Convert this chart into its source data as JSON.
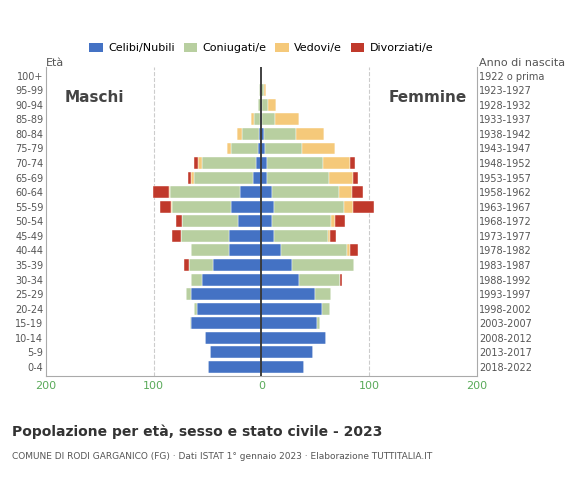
{
  "age_groups": [
    "0-4",
    "5-9",
    "10-14",
    "15-19",
    "20-24",
    "25-29",
    "30-34",
    "35-39",
    "40-44",
    "45-49",
    "50-54",
    "55-59",
    "60-64",
    "65-69",
    "70-74",
    "75-79",
    "80-84",
    "85-89",
    "90-94",
    "95-99",
    "100+"
  ],
  "birth_years": [
    "2018-2022",
    "2013-2017",
    "2008-2012",
    "2003-2007",
    "1998-2002",
    "1993-1997",
    "1988-1992",
    "1983-1987",
    "1978-1982",
    "1973-1977",
    "1968-1972",
    "1963-1967",
    "1958-1962",
    "1953-1957",
    "1948-1952",
    "1943-1947",
    "1938-1942",
    "1933-1937",
    "1928-1932",
    "1923-1927",
    "1922 o prima"
  ],
  "males_celibe": [
    50,
    48,
    52,
    65,
    60,
    65,
    55,
    45,
    30,
    30,
    22,
    28,
    20,
    8,
    5,
    3,
    2,
    1,
    0,
    1,
    0
  ],
  "males_coniugato": [
    0,
    0,
    0,
    1,
    3,
    5,
    10,
    22,
    35,
    45,
    52,
    55,
    65,
    55,
    50,
    25,
    16,
    6,
    3,
    1,
    0
  ],
  "males_vedovo": [
    0,
    0,
    0,
    0,
    0,
    0,
    0,
    0,
    0,
    0,
    0,
    1,
    1,
    2,
    4,
    4,
    5,
    3,
    0,
    0,
    0
  ],
  "males_divorziato": [
    0,
    0,
    0,
    0,
    0,
    0,
    0,
    5,
    0,
    8,
    5,
    10,
    15,
    3,
    4,
    0,
    0,
    0,
    0,
    0,
    0
  ],
  "females_nubile": [
    40,
    48,
    60,
    52,
    56,
    50,
    35,
    28,
    18,
    12,
    10,
    12,
    10,
    5,
    5,
    3,
    2,
    1,
    1,
    0,
    0
  ],
  "females_coniugata": [
    0,
    0,
    0,
    2,
    8,
    15,
    38,
    58,
    62,
    50,
    55,
    65,
    62,
    58,
    52,
    35,
    30,
    12,
    5,
    2,
    0
  ],
  "females_vedova": [
    0,
    0,
    0,
    0,
    0,
    0,
    0,
    0,
    2,
    2,
    3,
    8,
    12,
    22,
    25,
    30,
    26,
    22,
    8,
    2,
    0
  ],
  "females_divorziata": [
    0,
    0,
    0,
    0,
    0,
    0,
    2,
    0,
    8,
    5,
    10,
    20,
    10,
    5,
    5,
    0,
    0,
    0,
    0,
    0,
    0
  ],
  "color_celibe": "#4472c4",
  "color_coniugato": "#b8cfa0",
  "color_vedovo": "#f5c97a",
  "color_divorziato": "#c0392b",
  "legend_labels": [
    "Celibi/Nubili",
    "Coniugati/e",
    "Vedovi/e",
    "Divorziati/e"
  ],
  "title": "Popolazione per età, sesso e stato civile - 2023",
  "subtitle": "COMUNE DI RODI GARGANICO (FG) · Dati ISTAT 1° gennaio 2023 · Elaborazione TUTTITALIA.IT",
  "xlim": 200,
  "bar_height": 0.82,
  "bg_color": "#ffffff",
  "grid_color": "#cccccc",
  "center_line_color": "#333333",
  "axis_label_color": "#555555",
  "tick_color_x": "#5aaa5a",
  "maschi_label": "Maschi",
  "femmine_label": "Femmine"
}
